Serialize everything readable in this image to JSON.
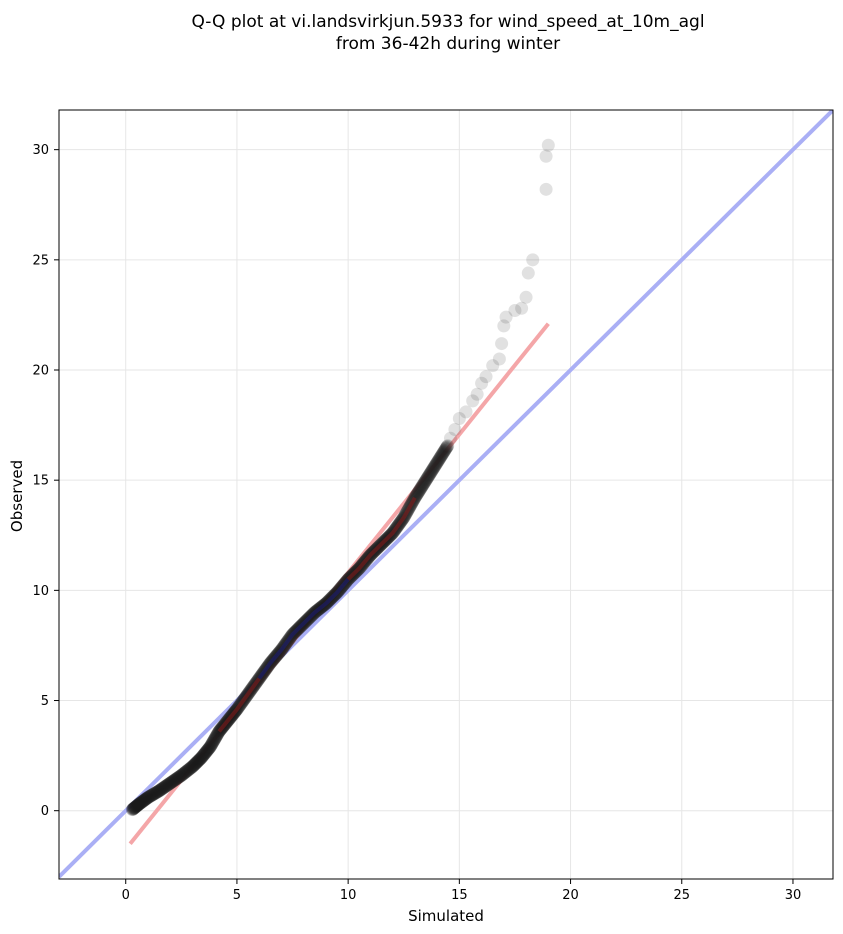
{
  "chart_data": {
    "type": "scatter",
    "title": [
      "Q-Q plot at vi.landsvirkjun.5933 for wind_speed_at_10m_agl",
      "from 36-42h during winter"
    ],
    "xlabel": "Simulated",
    "ylabel": "Observed",
    "xlim": [
      -3,
      31.8
    ],
    "ylim": [
      -3.1,
      31.8
    ],
    "xticks": [
      0,
      5,
      10,
      15,
      20,
      25,
      30
    ],
    "yticks": [
      0,
      5,
      10,
      15,
      20,
      25,
      30
    ],
    "grid": true,
    "quantile_curve": [
      [
        0.3,
        0.05
      ],
      [
        0.6,
        0.3
      ],
      [
        1.0,
        0.6
      ],
      [
        1.5,
        0.9
      ],
      [
        2.0,
        1.25
      ],
      [
        2.5,
        1.6
      ],
      [
        3.0,
        2.0
      ],
      [
        3.4,
        2.4
      ],
      [
        3.8,
        2.9
      ],
      [
        4.2,
        3.6
      ],
      [
        4.6,
        4.1
      ],
      [
        5.0,
        4.6
      ],
      [
        5.5,
        5.3
      ],
      [
        6.0,
        6.0
      ],
      [
        6.5,
        6.7
      ],
      [
        7.0,
        7.3
      ],
      [
        7.5,
        8.0
      ],
      [
        8.0,
        8.5
      ],
      [
        8.5,
        9.0
      ],
      [
        9.0,
        9.4
      ],
      [
        9.5,
        9.9
      ],
      [
        10.0,
        10.5
      ],
      [
        10.5,
        11.0
      ],
      [
        11.0,
        11.6
      ],
      [
        11.5,
        12.1
      ],
      [
        12.0,
        12.6
      ],
      [
        12.5,
        13.3
      ],
      [
        13.0,
        14.2
      ],
      [
        13.5,
        15.0
      ],
      [
        14.0,
        15.8
      ],
      [
        14.5,
        16.6
      ]
    ],
    "tail_points": [
      [
        14.6,
        16.9
      ],
      [
        14.8,
        17.3
      ],
      [
        15.0,
        17.8
      ],
      [
        15.3,
        18.1
      ],
      [
        15.6,
        18.6
      ],
      [
        15.8,
        18.9
      ],
      [
        16.0,
        19.4
      ],
      [
        16.2,
        19.7
      ],
      [
        16.5,
        20.2
      ],
      [
        16.8,
        20.5
      ],
      [
        16.9,
        21.2
      ],
      [
        17.0,
        22.0
      ],
      [
        17.1,
        22.4
      ],
      [
        17.5,
        22.7
      ],
      [
        17.8,
        22.8
      ],
      [
        18.0,
        23.3
      ],
      [
        18.1,
        24.4
      ],
      [
        18.3,
        25.0
      ],
      [
        18.9,
        28.2
      ],
      [
        18.9,
        29.7
      ],
      [
        19.0,
        30.2
      ]
    ],
    "fit_line": {
      "x": [
        0.2,
        19.0
      ],
      "y": [
        -1.5,
        22.1
      ],
      "color": "#f4a6a8"
    },
    "identity_line": {
      "x": [
        -3,
        31.8
      ],
      "y": [
        -3,
        31.8
      ],
      "color": "#aaaff5"
    },
    "colors": {
      "points": "#1a1a1a",
      "mid_segment_red": "#8b1a1a",
      "mid_segment_blue": "#1c1c7a"
    }
  }
}
